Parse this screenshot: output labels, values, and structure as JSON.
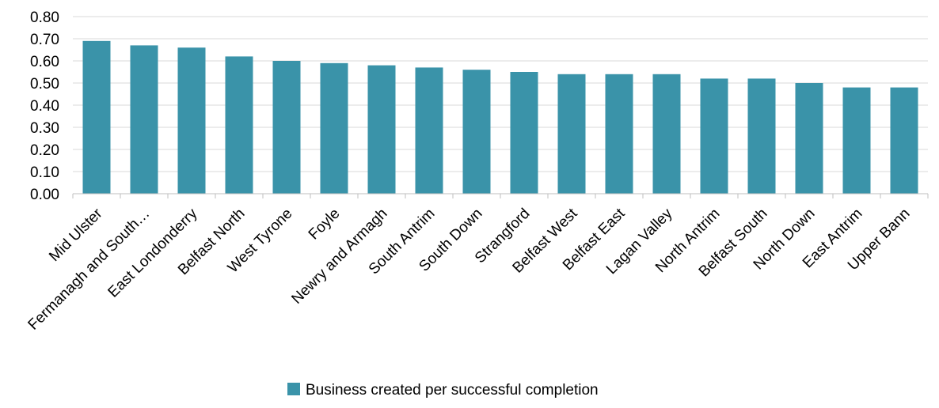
{
  "chart_data": {
    "type": "bar",
    "categories": [
      "Mid Ulster",
      "Fermanagh and South…",
      "East Londonderry",
      "Belfast North",
      "West Tyrone",
      "Foyle",
      "Newry and Armagh",
      "South Antrim",
      "South Down",
      "Strangford",
      "Belfast West",
      "Belfast East",
      "Lagan Valley",
      "North Antrim",
      "Belfast South",
      "North Down",
      "East Antrim",
      "Upper Bann"
    ],
    "series": [
      {
        "name": "Business created per successful completion",
        "color": "#3a93a9",
        "values": [
          0.69,
          0.67,
          0.66,
          0.62,
          0.6,
          0.59,
          0.58,
          0.57,
          0.56,
          0.55,
          0.54,
          0.54,
          0.54,
          0.52,
          0.52,
          0.5,
          0.48,
          0.48
        ]
      }
    ],
    "title": "",
    "xlabel": "",
    "ylabel": "",
    "ylim": [
      0,
      0.8
    ],
    "yticks": [
      "0.00",
      "0.10",
      "0.20",
      "0.30",
      "0.40",
      "0.50",
      "0.60",
      "0.70",
      "0.80"
    ],
    "grid": true,
    "legend_position": "bottom"
  }
}
